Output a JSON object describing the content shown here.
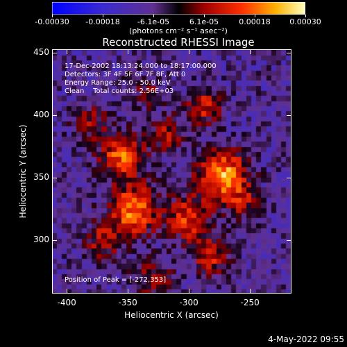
{
  "chart_data": {
    "type": "heatmap",
    "title": "Reconstructed RHESSI Image",
    "xlabel": "Heliocentric X (arcsec)",
    "ylabel": "Heliocentric Y (arcsec)",
    "xlim": [
      -412,
      -216
    ],
    "ylim": [
      257,
      453
    ],
    "x_ticks": [
      -400,
      -350,
      -300,
      -250
    ],
    "y_ticks": [
      300,
      350,
      400,
      450
    ],
    "colorbar": {
      "range": [
        -0.0003,
        0.0003
      ],
      "tick_labels": [
        "-0.00030",
        "-0.00018",
        "-6.1e-05",
        "6.1e-05",
        "0.00018",
        "0.00030"
      ],
      "units": "(photons cm⁻² s⁻¹ asec⁻²)"
    },
    "annotations": {
      "time": "17-Dec-2002 18:13:24.000 to 18:17:00.000",
      "detectors": "Detectors: 3F 4F 5F 6F 7F 8F, Att 0",
      "energy": "Energy Range: 25.0 - 50.0 keV",
      "clean": "Clean    Total counts: 2.56E+03",
      "peak": "Position of Peak = [-272,353]"
    },
    "peak_position": [
      -272,
      353
    ],
    "colors": {
      "negative_high": "#0000ff",
      "negative_mid": "#6040c0",
      "zero": "#000000",
      "positive_low": "#c00000",
      "positive_mid": "#ff6000",
      "positive_high": "#ffffa0"
    }
  },
  "footer_date": "4-May-2022 09:55"
}
